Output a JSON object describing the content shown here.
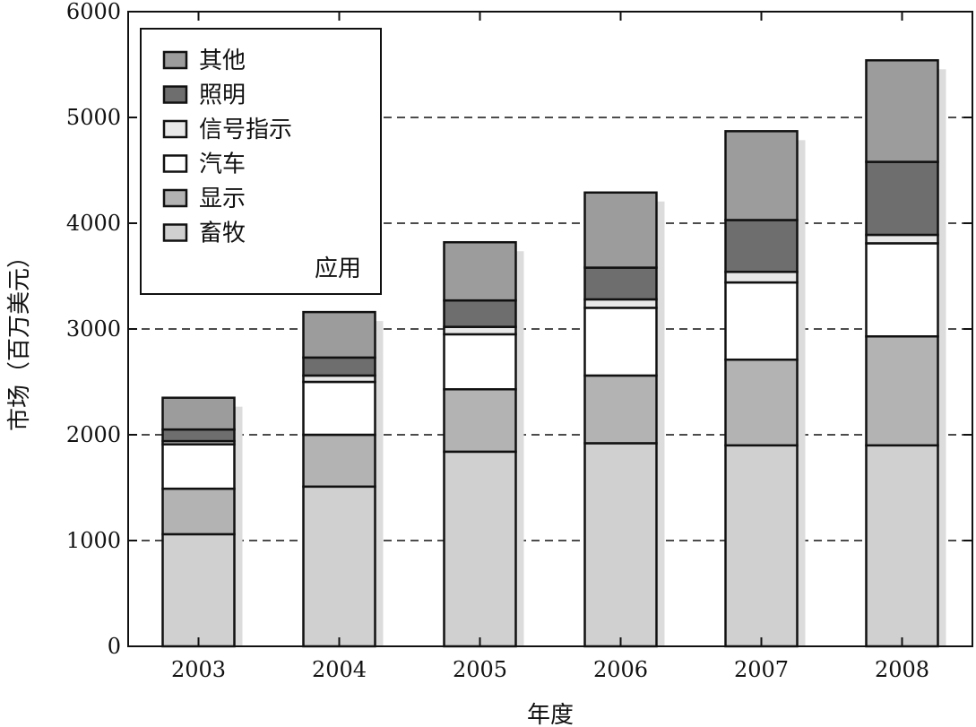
{
  "chart_data": {
    "type": "bar",
    "stacked": true,
    "xlabel": "年度",
    "ylabel": "市场（百万美元）",
    "categories": [
      "2003",
      "2004",
      "2005",
      "2006",
      "2007",
      "2008"
    ],
    "ylim": [
      0,
      6000
    ],
    "yticks": [
      "0",
      "1000",
      "2000",
      "3000",
      "4000",
      "5000",
      "6000"
    ],
    "grid": "horizontal dashed",
    "legend_title": "应用",
    "legend_position": "top-left",
    "series": [
      {
        "name": "畜牧",
        "color": "#d0d0d0",
        "values": [
          1060,
          1510,
          1840,
          1920,
          1900,
          1900
        ]
      },
      {
        "name": "显示",
        "color": "#b3b3b3",
        "values": [
          430,
          490,
          590,
          640,
          810,
          1030
        ]
      },
      {
        "name": "汽车",
        "color": "#ffffff",
        "values": [
          420,
          500,
          520,
          640,
          730,
          880
        ]
      },
      {
        "name": "信号指示",
        "color": "#e8e8e8",
        "values": [
          30,
          60,
          70,
          80,
          100,
          80
        ]
      },
      {
        "name": "照明",
        "color": "#6e6e6e",
        "values": [
          110,
          170,
          250,
          300,
          490,
          690
        ]
      },
      {
        "name": "其他",
        "color": "#9c9c9c",
        "values": [
          300,
          430,
          550,
          710,
          840,
          960
        ]
      }
    ]
  }
}
